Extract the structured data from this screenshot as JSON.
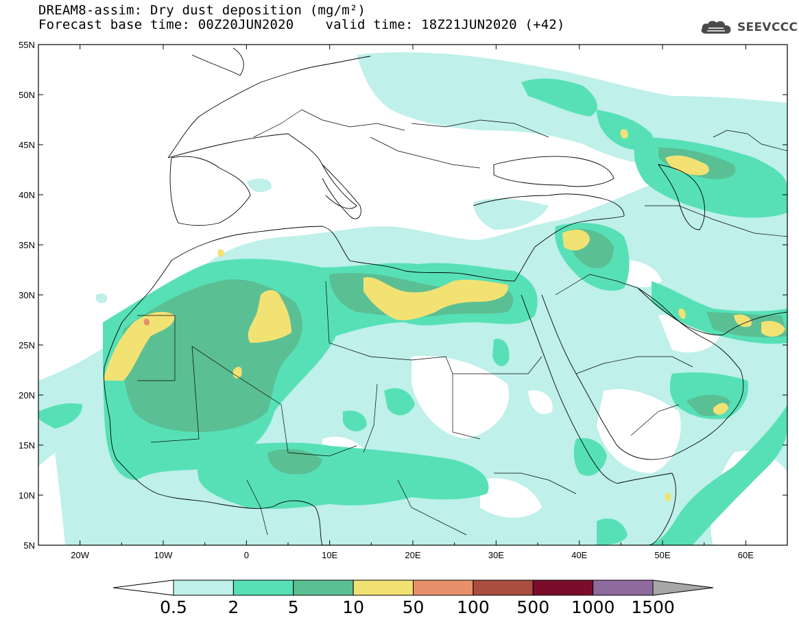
{
  "title": {
    "line1": "DREAM8-assim: Dry dust deposition (mg/m²)",
    "base": "Forecast base time: 00Z20JUN2020",
    "valid": "valid time: 18Z21JUN2020 (+42)"
  },
  "logo": {
    "text": "SEEVCCC",
    "icon": "cloud-icon"
  },
  "axes": {
    "lon_labels": [
      "20W",
      "10W",
      "0",
      "10E",
      "20E",
      "30E",
      "40E",
      "50E",
      "60E"
    ],
    "lat_labels": [
      "55N",
      "50N",
      "45N",
      "40N",
      "35N",
      "30N",
      "25N",
      "20N",
      "15N",
      "10N",
      "5N"
    ],
    "lon_range": [
      -25,
      65
    ],
    "lat_range": [
      5,
      55
    ]
  },
  "colorbar": {
    "labels": [
      "0.5",
      "2",
      "5",
      "10",
      "50",
      "100",
      "500",
      "1000",
      "1500"
    ],
    "colors": [
      "#bff0ea",
      "#57e0b6",
      "#5bbf94",
      "#f2e274",
      "#e9906a",
      "#ab4d3e",
      "#7b0d2b",
      "#8f6a9f",
      "#a7a7a7"
    ]
  }
}
